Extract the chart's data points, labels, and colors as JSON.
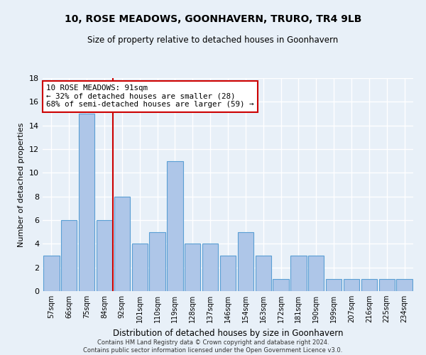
{
  "title": "10, ROSE MEADOWS, GOONHAVERN, TRURO, TR4 9LB",
  "subtitle": "Size of property relative to detached houses in Goonhavern",
  "xlabel": "Distribution of detached houses by size in Goonhavern",
  "ylabel": "Number of detached properties",
  "categories": [
    "57sqm",
    "66sqm",
    "75sqm",
    "84sqm",
    "92sqm",
    "101sqm",
    "110sqm",
    "119sqm",
    "128sqm",
    "137sqm",
    "146sqm",
    "154sqm",
    "163sqm",
    "172sqm",
    "181sqm",
    "190sqm",
    "199sqm",
    "207sqm",
    "216sqm",
    "225sqm",
    "234sqm"
  ],
  "values": [
    3,
    6,
    15,
    6,
    8,
    4,
    5,
    11,
    4,
    4,
    3,
    5,
    3,
    1,
    3,
    3,
    1,
    1,
    1,
    1,
    1
  ],
  "bar_color": "#aec6e8",
  "bar_edge_color": "#5a9fd4",
  "background_color": "#e8f0f8",
  "grid_color": "#ffffff",
  "vline_x": 3.5,
  "vline_color": "#cc0000",
  "annotation_text": "10 ROSE MEADOWS: 91sqm\n← 32% of detached houses are smaller (28)\n68% of semi-detached houses are larger (59) →",
  "annotation_box_color": "#ffffff",
  "annotation_box_edge": "#cc0000",
  "ylim": [
    0,
    18
  ],
  "yticks": [
    0,
    2,
    4,
    6,
    8,
    10,
    12,
    14,
    16,
    18
  ],
  "footer1": "Contains HM Land Registry data © Crown copyright and database right 2024.",
  "footer2": "Contains public sector information licensed under the Open Government Licence v3.0."
}
